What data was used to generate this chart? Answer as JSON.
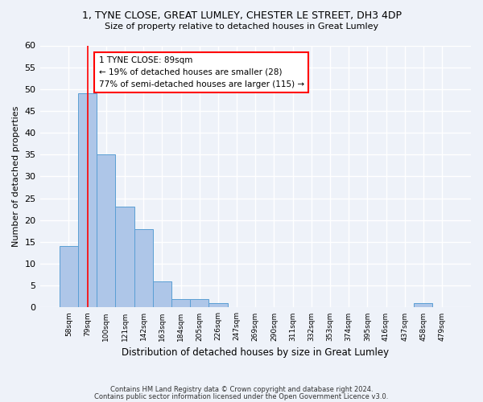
{
  "title1": "1, TYNE CLOSE, GREAT LUMLEY, CHESTER LE STREET, DH3 4DP",
  "title2": "Size of property relative to detached houses in Great Lumley",
  "xlabel": "Distribution of detached houses by size in Great Lumley",
  "ylabel": "Number of detached properties",
  "footnote1": "Contains HM Land Registry data © Crown copyright and database right 2024.",
  "footnote2": "Contains public sector information licensed under the Open Government Licence v3.0.",
  "bin_labels": [
    "58sqm",
    "79sqm",
    "100sqm",
    "121sqm",
    "142sqm",
    "163sqm",
    "184sqm",
    "205sqm",
    "226sqm",
    "247sqm",
    "269sqm",
    "290sqm",
    "311sqm",
    "332sqm",
    "353sqm",
    "374sqm",
    "395sqm",
    "416sqm",
    "437sqm",
    "458sqm",
    "479sqm"
  ],
  "bar_heights": [
    14,
    49,
    35,
    23,
    18,
    6,
    2,
    2,
    1,
    0,
    0,
    0,
    0,
    0,
    0,
    0,
    0,
    0,
    0,
    1,
    0
  ],
  "bar_color": "#aec6e8",
  "bar_edge_color": "#5a9fd4",
  "ylim": [
    0,
    60
  ],
  "yticks": [
    0,
    5,
    10,
    15,
    20,
    25,
    30,
    35,
    40,
    45,
    50,
    55,
    60
  ],
  "property_line_x": 1,
  "property_line_color": "#ff0000",
  "annotation_text": "1 TYNE CLOSE: 89sqm\n← 19% of detached houses are smaller (28)\n77% of semi-detached houses are larger (115) →",
  "annotation_box_color": "#ffffff",
  "annotation_box_edge": "#ff0000",
  "background_color": "#eef2f9",
  "grid_color": "#ffffff",
  "font_family": "DejaVu Sans"
}
